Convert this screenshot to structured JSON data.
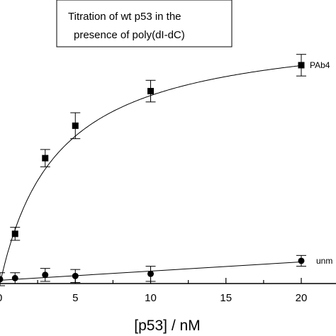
{
  "chart_data": {
    "type": "scatter",
    "title_lines": [
      "Titration of wt p53 in the",
      "presence of poly(dI-dC)"
    ],
    "xlabel": "[p53] / nM",
    "ylabel": "",
    "xlim": [
      0,
      23
    ],
    "ylim": [
      0,
      1.05
    ],
    "x_ticks": [
      5,
      10,
      15,
      20
    ],
    "x_tick_labels": [
      "5",
      "10",
      "15",
      "20"
    ],
    "grid": false,
    "series": [
      {
        "name": "PAb4",
        "marker": "square",
        "fit_curve": true,
        "x": [
          1,
          3,
          5,
          10,
          20
        ],
        "y": [
          0.23,
          0.58,
          0.73,
          0.89,
          1.01
        ],
        "err": [
          0.03,
          0.04,
          0.06,
          0.05,
          0.05
        ]
      },
      {
        "name": "unm",
        "marker": "circle",
        "fit_curve": false,
        "x": [
          0,
          1,
          3,
          5,
          10,
          20
        ],
        "y": [
          0.02,
          0.025,
          0.04,
          0.035,
          0.045,
          0.105
        ],
        "err": [
          0.03,
          0.025,
          0.03,
          0.03,
          0.035,
          0.025
        ]
      }
    ]
  }
}
